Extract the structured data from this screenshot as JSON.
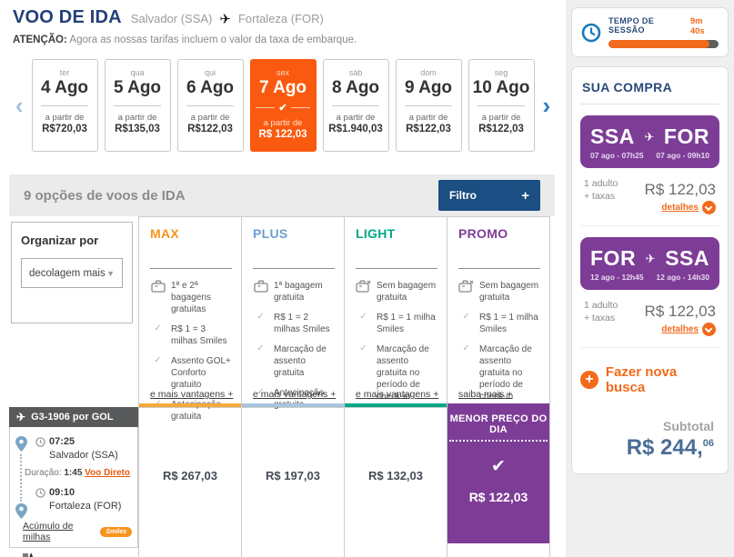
{
  "colors": {
    "navy": "#24407a",
    "button_blue": "#1b4e82",
    "selected_orange": "#fa5a0f",
    "accent_orange": "#f26a1b",
    "max_orange": "#f7941d",
    "plus_blue": "#6f9fd0",
    "light_teal": "#00a886",
    "promo_purple": "#7d3d97",
    "flight_header_gray": "#58595b"
  },
  "header": {
    "title": "VOO DE IDA",
    "origin": "Salvador (SSA)",
    "destination": "Fortaleza (FOR)",
    "notice_label": "ATENÇÃO:",
    "notice_text": "Agora as nossas tarifas incluem o valor da taxa de embarque."
  },
  "date_carousel": {
    "days": [
      {
        "weekday": "ter",
        "date": "4 Ago",
        "prefix": "a partir de",
        "price": "R$720,03",
        "selected": false
      },
      {
        "weekday": "qua",
        "date": "5 Ago",
        "prefix": "a partir de",
        "price": "R$135,03",
        "selected": false
      },
      {
        "weekday": "qui",
        "date": "6 Ago",
        "prefix": "a partir de",
        "price": "R$122,03",
        "selected": false
      },
      {
        "weekday": "sex",
        "date": "7 Ago",
        "prefix": "a partir de",
        "price": "R$ 122,03",
        "selected": true
      },
      {
        "weekday": "sáb",
        "date": "8 Ago",
        "prefix": "a partir de",
        "price": "R$1.940,03",
        "selected": false
      },
      {
        "weekday": "dom",
        "date": "9 Ago",
        "prefix": "a partir de",
        "price": "R$122,03",
        "selected": false
      },
      {
        "weekday": "seg",
        "date": "10 Ago",
        "prefix": "a partir de",
        "price": "R$122,03",
        "selected": false
      }
    ]
  },
  "options_bar": {
    "title": "9 opções de voos de IDA",
    "filter_label": "Filtro",
    "filter_plus": "+"
  },
  "sort": {
    "label": "Organizar por",
    "value": "decolagem mais"
  },
  "fares": [
    {
      "name": "MAX",
      "more_link": "e mais vantagens +",
      "price": "R$ 267,03",
      "benefits": [
        {
          "icon": "baggage",
          "text": "1ª e 2ª bagagens gratuitas"
        },
        {
          "icon": "check",
          "text": "R$ 1 = 3 milhas Smiles"
        },
        {
          "icon": "check",
          "text": "Assento GOL+ Conforto gratuito"
        },
        {
          "icon": "check",
          "text": "Antecipação gratuita"
        }
      ]
    },
    {
      "name": "PLUS",
      "more_link": "e mais vantagens +",
      "price": "R$ 197,03",
      "benefits": [
        {
          "icon": "baggage",
          "text": "1ª bagagem gratuita"
        },
        {
          "icon": "check",
          "text": "R$ 1 = 2 milhas Smiles"
        },
        {
          "icon": "check",
          "text": "Marcação de assento gratuita"
        },
        {
          "icon": "check",
          "text": "Antecipação gratuita"
        }
      ]
    },
    {
      "name": "LIGHT",
      "more_link": "e mais vantagens +",
      "price": "R$ 132,03",
      "benefits": [
        {
          "icon": "baggage-none",
          "text": "Sem bagagem gratuita"
        },
        {
          "icon": "check",
          "text": "R$ 1 = 1 milha Smiles"
        },
        {
          "icon": "check",
          "text": "Marcação de assento gratuita no período de check-in"
        }
      ]
    },
    {
      "name": "PROMO",
      "more_link": "saiba mais +",
      "price": "R$ 122,03",
      "badge": "MENOR PREÇO DO DIA",
      "benefits": [
        {
          "icon": "baggage-none",
          "text": "Sem bagagem gratuita"
        },
        {
          "icon": "check",
          "text": "R$ 1 = 1 milha Smiles"
        },
        {
          "icon": "check",
          "text": "Marcação de assento gratuita no período de check-in"
        }
      ]
    }
  ],
  "flight": {
    "header": "G3-1906 por  GOL",
    "departure_time": "07:25",
    "departure_city": "Salvador (SSA)",
    "duration_label": "Duração:",
    "duration": "1:45",
    "direct_label": "Voo Direto",
    "arrival_time": "09:10",
    "arrival_city": "Fortaleza (FOR)",
    "miles_link": "Acúmulo de milhas",
    "miles_logo": "Smiles"
  },
  "sidebar": {
    "session": {
      "label": "TEMPO DE SESSÃO",
      "time": "9m 40s",
      "progress_pct": 92
    },
    "purchase_title": "SUA COMPRA",
    "journeys": [
      {
        "from": "SSA",
        "to": "FOR",
        "from_date": "07 ago - 07h25",
        "to_date": "07 ago - 09h10",
        "pax": "1 adulto",
        "taxes": "+ taxas",
        "price": "R$ 122,03",
        "details": "detalhes"
      },
      {
        "from": "FOR",
        "to": "SSA",
        "from_date": "12 ago - 12h45",
        "to_date": "12 ago - 14h30",
        "pax": "1 adulto",
        "taxes": "+ taxas",
        "price": "R$ 122,03",
        "details": "detalhes"
      }
    ],
    "new_search_plus": "+",
    "new_search": "Fazer nova busca",
    "subtotal_label": "Subtotal",
    "subtotal_main": "R$ 244,",
    "subtotal_cents": "06"
  }
}
